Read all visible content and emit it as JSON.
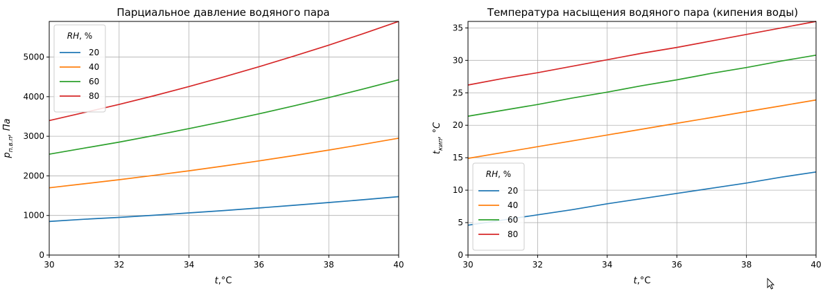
{
  "chart_data": [
    {
      "type": "line",
      "title": "Парциальное давление водяного пара",
      "xlabel_var": "t",
      "xlabel_unit": ",°C",
      "ylabel_main": "p",
      "ylabel_sub": "п.в.п",
      "ylabel_unit": ", Па",
      "xlim": [
        30,
        40
      ],
      "ylim": [
        0,
        5900
      ],
      "x_ticks": [
        "30",
        "32",
        "34",
        "36",
        "38",
        "40"
      ],
      "y_ticks": [
        "0",
        "1000",
        "2000",
        "3000",
        "4000",
        "5000"
      ],
      "grid": true,
      "legend": {
        "title_var": "RH",
        "title_unit": ", %",
        "placement": "upper-left"
      },
      "series": [
        {
          "name": "20",
          "color": "#1f77b4",
          "x": [
            30,
            31,
            32,
            33,
            34,
            35,
            36,
            37,
            38,
            39,
            40
          ],
          "y": [
            849,
            904,
            951,
            1006,
            1064,
            1125,
            1189,
            1256,
            1326,
            1399,
            1475
          ]
        },
        {
          "name": "40",
          "color": "#ff7f0e",
          "x": [
            30,
            31,
            32,
            33,
            34,
            35,
            36,
            37,
            38,
            39,
            40
          ],
          "y": [
            1698,
            1800,
            1902,
            2012,
            2128,
            2250,
            2377,
            2511,
            2651,
            2798,
            2951
          ]
        },
        {
          "name": "60",
          "color": "#2ca02c",
          "x": [
            30,
            31,
            32,
            33,
            34,
            35,
            36,
            37,
            38,
            39,
            40
          ],
          "y": [
            2547,
            2700,
            2853,
            3018,
            3192,
            3375,
            3566,
            3767,
            3977,
            4197,
            4426
          ]
        },
        {
          "name": "80",
          "color": "#d62728",
          "x": [
            30,
            31,
            32,
            33,
            34,
            35,
            36,
            37,
            38,
            39,
            40
          ],
          "y": [
            3396,
            3600,
            3804,
            4024,
            4256,
            4500,
            4755,
            5023,
            5302,
            5596,
            5902
          ]
        }
      ]
    },
    {
      "type": "line",
      "title": "Температура насыщения водяного пара (кипения воды)",
      "xlabel_var": "t",
      "xlabel_unit": ",°C",
      "ylabel_main": "t",
      "ylabel_sub": "кип",
      "ylabel_unit": ", °C",
      "xlim": [
        30,
        40
      ],
      "ylim": [
        0,
        36
      ],
      "x_ticks": [
        "30",
        "32",
        "34",
        "36",
        "38",
        "40"
      ],
      "y_ticks": [
        "0",
        "5",
        "10",
        "15",
        "20",
        "25",
        "30",
        "35"
      ],
      "grid": true,
      "legend": {
        "title_var": "RH",
        "title_unit": ", %",
        "placement": "lower-left"
      },
      "series": [
        {
          "name": "20",
          "color": "#1f77b4",
          "x": [
            30,
            31,
            32,
            33,
            34,
            35,
            36,
            37,
            38,
            39,
            40
          ],
          "y": [
            4.6,
            5.4,
            6.2,
            7.0,
            7.9,
            8.7,
            9.5,
            10.3,
            11.1,
            12.0,
            12.8
          ]
        },
        {
          "name": "40",
          "color": "#ff7f0e",
          "x": [
            30,
            31,
            32,
            33,
            34,
            35,
            36,
            37,
            38,
            39,
            40
          ],
          "y": [
            14.9,
            15.8,
            16.7,
            17.6,
            18.5,
            19.4,
            20.3,
            21.2,
            22.1,
            23.0,
            23.9
          ]
        },
        {
          "name": "60",
          "color": "#2ca02c",
          "x": [
            30,
            31,
            32,
            33,
            34,
            35,
            36,
            37,
            38,
            39,
            40
          ],
          "y": [
            21.4,
            22.3,
            23.2,
            24.2,
            25.1,
            26.1,
            27.0,
            28.0,
            28.9,
            29.9,
            30.8
          ]
        },
        {
          "name": "80",
          "color": "#d62728",
          "x": [
            30,
            31,
            32,
            33,
            34,
            35,
            36,
            37,
            38,
            39,
            40
          ],
          "y": [
            26.2,
            27.2,
            28.1,
            29.1,
            30.1,
            31.1,
            32.0,
            33.0,
            34.0,
            35.0,
            36.0
          ]
        }
      ]
    }
  ]
}
